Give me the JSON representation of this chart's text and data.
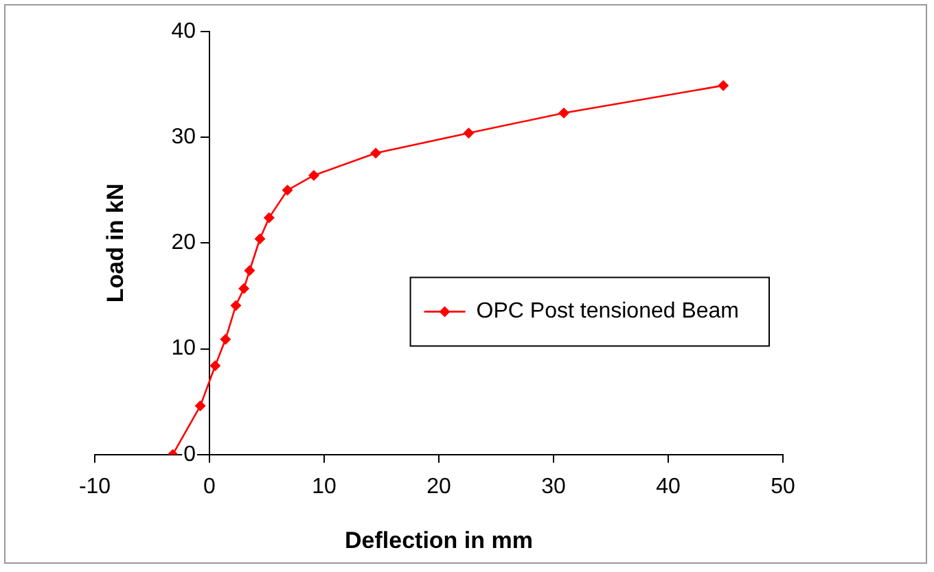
{
  "chart_data": {
    "type": "line",
    "xlabel": "Deflection in mm",
    "ylabel": "Load in kN",
    "x": [
      -3.2,
      -0.8,
      0.5,
      1.4,
      2.3,
      3.0,
      3.5,
      4.4,
      5.2,
      6.8,
      9.1,
      14.5,
      22.6,
      30.9,
      44.8
    ],
    "series": [
      {
        "name": "OPC Post tensioned Beam",
        "color": "#ff0000",
        "values": [
          0,
          4.6,
          8.4,
          10.9,
          14.1,
          15.7,
          17.4,
          20.4,
          22.4,
          25.0,
          26.4,
          28.5,
          30.4,
          32.3,
          34.9
        ]
      }
    ],
    "xlim": [
      -10,
      50
    ],
    "xticks": [
      -10,
      0,
      10,
      20,
      30,
      40,
      50
    ],
    "ylim": [
      0,
      40
    ],
    "yticks": [
      0,
      10,
      20,
      30,
      40
    ],
    "grid": false,
    "legend": "right",
    "marker": "diamond",
    "line_style": "solid"
  }
}
